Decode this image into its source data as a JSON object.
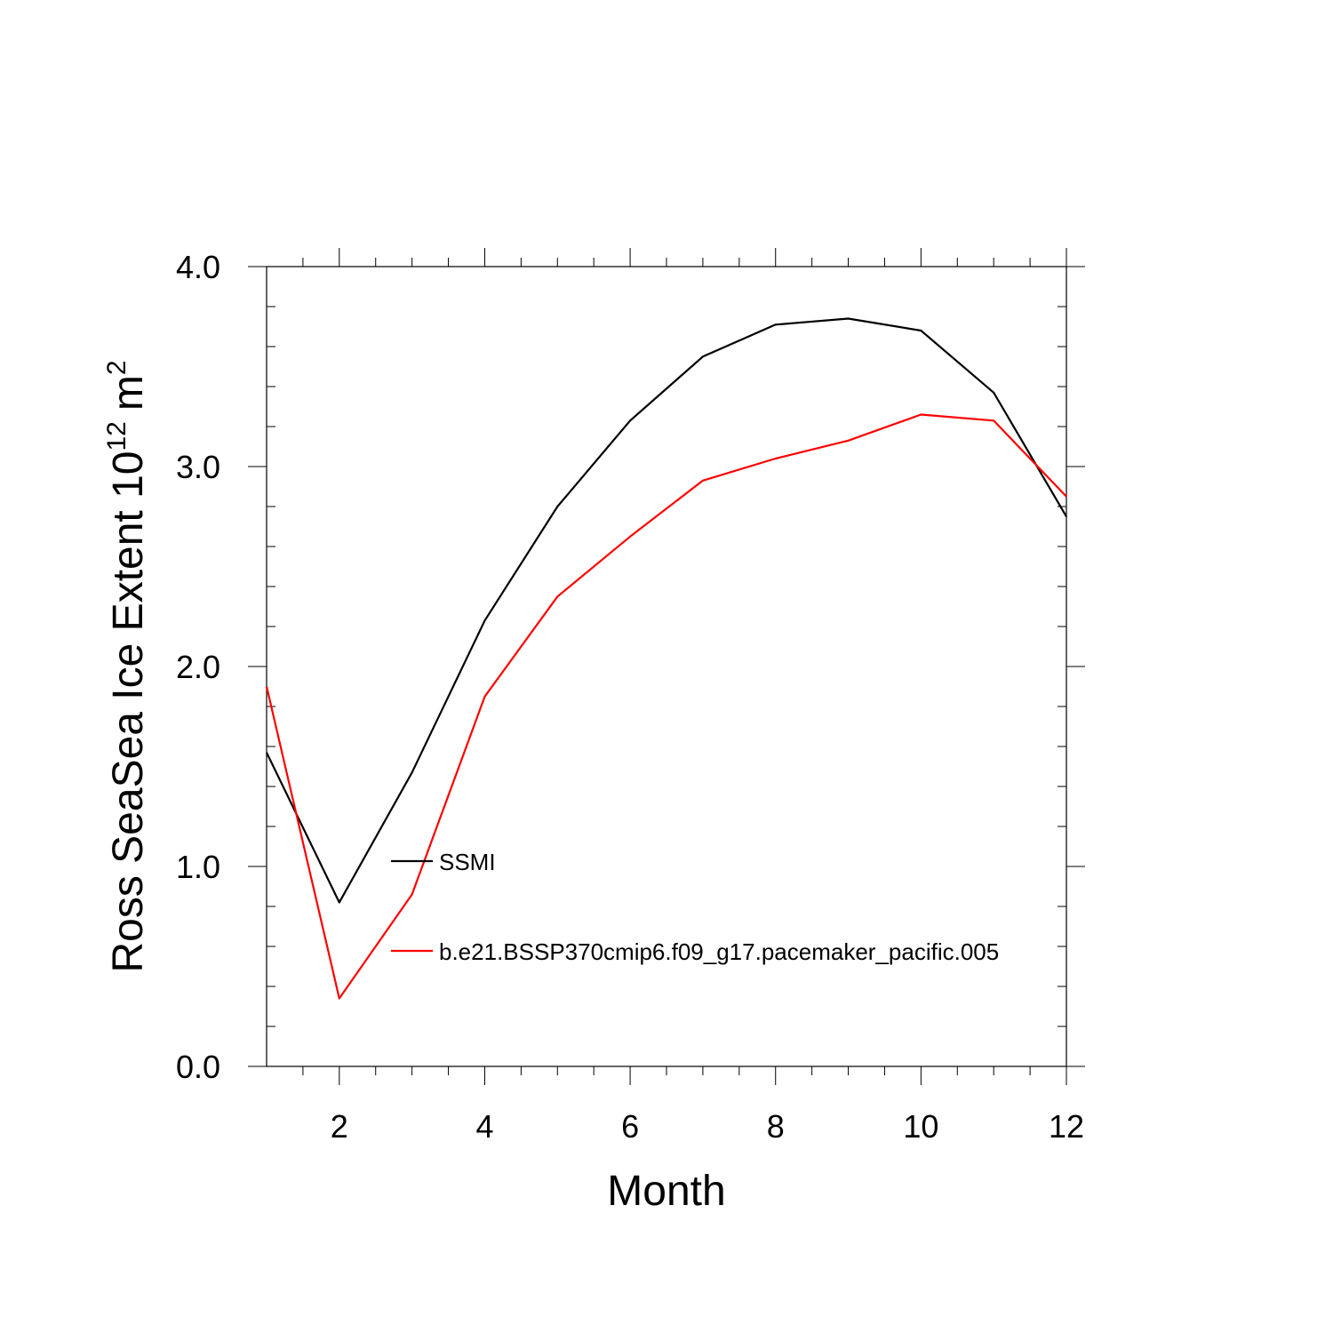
{
  "chart_data": {
    "type": "line",
    "xlabel": "Month",
    "ylabel": {
      "main": "Ross SeaSea Ice Extent 10",
      "exponent": "12",
      "unit": "m",
      "unit_exponent": "2"
    },
    "xlim": [
      1,
      12
    ],
    "ylim": [
      0,
      4
    ],
    "x_ticks": [
      2,
      4,
      6,
      8,
      10,
      12
    ],
    "x_tick_labels": [
      "2",
      "4",
      "6",
      "8",
      "10",
      "12"
    ],
    "y_ticks": [
      0,
      1,
      2,
      3,
      4
    ],
    "y_tick_labels": [
      "0.0",
      "1.0",
      "2.0",
      "3.0",
      "4.0"
    ],
    "x": [
      1,
      2,
      3,
      4,
      5,
      6,
      7,
      8,
      9,
      10,
      11,
      12
    ],
    "series": [
      {
        "name": "SSMI",
        "color": "#000000",
        "values": [
          1.57,
          0.82,
          1.47,
          2.23,
          2.8,
          3.23,
          3.55,
          3.71,
          3.74,
          3.68,
          3.37,
          2.75
        ]
      },
      {
        "name": "b.e21.BSSP370cmip6.f09_g17.pacemaker_pacific.005",
        "color": "#ff0000",
        "values": [
          1.9,
          0.34,
          0.86,
          1.85,
          2.35,
          2.65,
          2.93,
          3.04,
          3.13,
          3.26,
          3.23,
          2.85
        ]
      }
    ],
    "legend_position": "inside-center-left",
    "grid": false
  }
}
